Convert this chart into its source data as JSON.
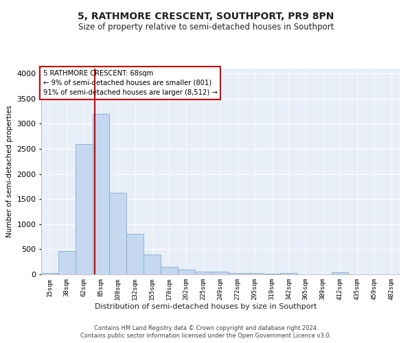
{
  "title": "5, RATHMORE CRESCENT, SOUTHPORT, PR9 8PN",
  "subtitle": "Size of property relative to semi-detached houses in Southport",
  "xlabel": "Distribution of semi-detached houses by size in Southport",
  "ylabel": "Number of semi-detached properties",
  "footer1": "Contains HM Land Registry data © Crown copyright and database right 2024.",
  "footer2": "Contains public sector information licensed under the Open Government Licence v3.0.",
  "annotation_line1": "5 RATHMORE CRESCENT: 68sqm",
  "annotation_line2": "← 9% of semi-detached houses are smaller (801)",
  "annotation_line3": "91% of semi-detached houses are larger (8,512) →",
  "bar_labels": [
    "15sqm",
    "38sqm",
    "62sqm",
    "85sqm",
    "108sqm",
    "132sqm",
    "155sqm",
    "178sqm",
    "202sqm",
    "225sqm",
    "249sqm",
    "272sqm",
    "295sqm",
    "319sqm",
    "342sqm",
    "365sqm",
    "389sqm",
    "412sqm",
    "435sqm",
    "459sqm",
    "482sqm"
  ],
  "bar_values": [
    25,
    460,
    2600,
    3200,
    1620,
    800,
    400,
    155,
    90,
    60,
    55,
    30,
    25,
    15,
    30,
    5,
    0,
    35,
    0,
    0,
    0
  ],
  "bar_color": "#c5d8ef",
  "bar_edge_color": "#7aadd4",
  "red_line_x": 2.62,
  "ylim": [
    0,
    4100
  ],
  "yticks": [
    0,
    500,
    1000,
    1500,
    2000,
    2500,
    3000,
    3500,
    4000
  ],
  "bg_color": "#e8eff8",
  "annotation_box_color": "#ffffff",
  "annotation_border_color": "#cc0000",
  "title_fontsize": 10,
  "subtitle_fontsize": 8.5
}
